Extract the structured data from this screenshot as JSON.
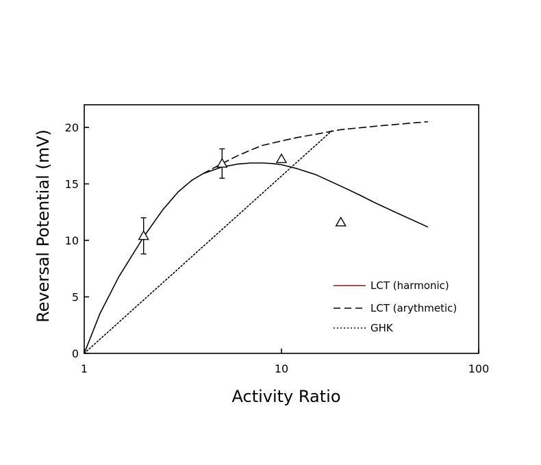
{
  "chart_data": {
    "type": "line",
    "title": "",
    "xlabel": "Activity Ratio",
    "ylabel": "Reversal Potential (mV)",
    "xscale": "log",
    "xlim": [
      1,
      100
    ],
    "ylim": [
      0,
      22
    ],
    "x_ticks": [
      1,
      10,
      100
    ],
    "y_ticks": [
      0,
      5,
      10,
      15,
      20
    ],
    "grid": false,
    "legend_position": "bottom-right",
    "series": [
      {
        "name": "LCT (harmonic)",
        "style": "solid",
        "color": "#000000",
        "legend_color": "#8b1a1a",
        "x": [
          1,
          1.2,
          1.5,
          2,
          2.5,
          3,
          3.5,
          4,
          5,
          6,
          7,
          8,
          9,
          10,
          12,
          15,
          20,
          25,
          30,
          40,
          55
        ],
        "y": [
          0,
          3.5,
          6.8,
          10.3,
          12.7,
          14.3,
          15.3,
          15.9,
          16.5,
          16.75,
          16.85,
          16.85,
          16.8,
          16.7,
          16.35,
          15.8,
          14.8,
          14.0,
          13.3,
          12.3,
          11.2
        ]
      },
      {
        "name": "LCT (arythmetic)",
        "style": "dashed",
        "color": "#000000",
        "x": [
          4,
          5,
          6,
          7,
          8,
          10,
          12,
          15,
          20,
          30,
          40,
          55
        ],
        "y": [
          15.9,
          16.8,
          17.5,
          18.0,
          18.4,
          18.8,
          19.1,
          19.4,
          19.8,
          20.1,
          20.3,
          20.5
        ]
      },
      {
        "name": "GHK",
        "style": "dotted",
        "color": "#000000",
        "x": [
          1,
          18
        ],
        "y": [
          0,
          19.7
        ]
      }
    ],
    "points": {
      "marker": "triangle",
      "x": [
        2,
        5,
        10,
        20
      ],
      "y": [
        10.4,
        16.8,
        17.2,
        11.6
      ],
      "error": [
        1.6,
        1.3,
        null,
        null
      ]
    }
  },
  "legend": {
    "items": [
      {
        "label": "LCT (harmonic)"
      },
      {
        "label": "LCT (arythmetic)"
      },
      {
        "label": "GHK"
      }
    ]
  }
}
